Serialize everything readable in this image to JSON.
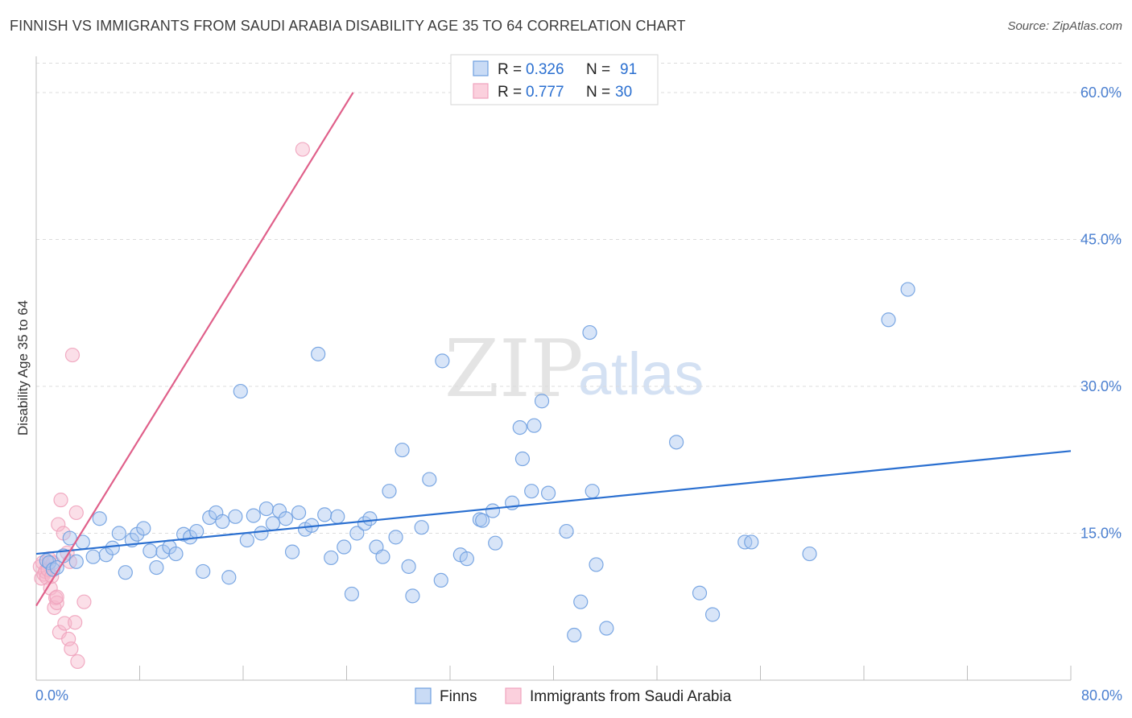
{
  "title": "FINNISH VS IMMIGRANTS FROM SAUDI ARABIA DISABILITY AGE 35 TO 64 CORRELATION CHART",
  "source": "Source: ZipAtlas.com",
  "watermark": {
    "zip": "ZIP",
    "atlas": "atlas"
  },
  "legend_box": {
    "rows": [
      {
        "r_label": "R = ",
        "r_value": "0.326",
        "n_label": "N = ",
        "n_value": "91"
      },
      {
        "r_label": "R = ",
        "r_value": "0.777",
        "n_label": "N = ",
        "n_value": "30"
      }
    ]
  },
  "bottom_legend": [
    "Finns",
    "Immigrants from Saudi Arabia"
  ],
  "colors": {
    "finns": "#6e9fe0",
    "finns_line": "#2a6fd0",
    "saudi": "#f0a3bd",
    "saudi_line": "#e0608a",
    "tick": "#4a7fd0"
  },
  "chart_data": {
    "type": "scatter",
    "xlabel": "",
    "ylabel": "Disability Age 35 to 64",
    "xlim": [
      0,
      80
    ],
    "ylim": [
      0,
      63
    ],
    "x_tick_labels": [
      "0.0%",
      "80.0%"
    ],
    "y_ticks": [
      15,
      30,
      45,
      60
    ],
    "y_tick_labels": [
      "15.0%",
      "30.0%",
      "45.0%",
      "60.0%"
    ],
    "grid": true,
    "series": [
      {
        "name": "Finns",
        "r": 0.326,
        "n": 91,
        "trend": {
          "x": [
            0,
            80
          ],
          "y": [
            12.9,
            23.4
          ]
        },
        "points": [
          [
            0.8,
            12.2
          ],
          [
            1.0,
            12.0
          ],
          [
            1.3,
            11.3
          ],
          [
            1.6,
            11.5
          ],
          [
            2.1,
            12.7
          ],
          [
            2.6,
            14.5
          ],
          [
            3.1,
            12.1
          ],
          [
            3.6,
            14.1
          ],
          [
            4.4,
            12.6
          ],
          [
            4.9,
            16.5
          ],
          [
            5.4,
            12.8
          ],
          [
            5.9,
            13.5
          ],
          [
            6.4,
            15.0
          ],
          [
            6.9,
            11.0
          ],
          [
            7.4,
            14.3
          ],
          [
            7.8,
            14.9
          ],
          [
            8.3,
            15.5
          ],
          [
            8.8,
            13.2
          ],
          [
            9.3,
            11.5
          ],
          [
            9.8,
            13.1
          ],
          [
            10.3,
            13.6
          ],
          [
            10.8,
            12.9
          ],
          [
            11.4,
            14.9
          ],
          [
            11.9,
            14.6
          ],
          [
            12.4,
            15.2
          ],
          [
            12.9,
            11.1
          ],
          [
            13.4,
            16.6
          ],
          [
            13.9,
            17.1
          ],
          [
            14.4,
            16.2
          ],
          [
            14.9,
            10.5
          ],
          [
            15.4,
            16.7
          ],
          [
            15.8,
            29.5
          ],
          [
            16.3,
            14.3
          ],
          [
            16.8,
            16.8
          ],
          [
            17.4,
            15.0
          ],
          [
            17.8,
            17.5
          ],
          [
            18.3,
            16.0
          ],
          [
            18.8,
            17.3
          ],
          [
            19.3,
            16.5
          ],
          [
            19.8,
            13.1
          ],
          [
            20.3,
            17.1
          ],
          [
            20.8,
            15.4
          ],
          [
            21.3,
            15.8
          ],
          [
            21.8,
            33.3
          ],
          [
            22.3,
            16.9
          ],
          [
            22.8,
            12.5
          ],
          [
            23.3,
            16.7
          ],
          [
            23.8,
            13.6
          ],
          [
            24.4,
            8.8
          ],
          [
            24.8,
            15.0
          ],
          [
            25.4,
            16.0
          ],
          [
            25.8,
            16.5
          ],
          [
            26.3,
            13.6
          ],
          [
            26.8,
            12.6
          ],
          [
            27.3,
            19.3
          ],
          [
            27.8,
            14.6
          ],
          [
            28.3,
            23.5
          ],
          [
            28.8,
            11.6
          ],
          [
            29.1,
            8.6
          ],
          [
            29.8,
            15.6
          ],
          [
            30.4,
            20.5
          ],
          [
            31.3,
            10.2
          ],
          [
            31.4,
            32.6
          ],
          [
            32.8,
            12.8
          ],
          [
            33.3,
            12.4
          ],
          [
            34.3,
            16.4
          ],
          [
            34.5,
            16.3
          ],
          [
            35.3,
            17.3
          ],
          [
            35.5,
            14.0
          ],
          [
            36.8,
            18.1
          ],
          [
            37.4,
            25.8
          ],
          [
            37.6,
            22.6
          ],
          [
            38.3,
            19.3
          ],
          [
            38.5,
            26.0
          ],
          [
            39.1,
            28.5
          ],
          [
            39.6,
            19.1
          ],
          [
            41.0,
            15.2
          ],
          [
            42.1,
            8.0
          ],
          [
            42.8,
            35.5
          ],
          [
            43.3,
            11.8
          ],
          [
            44.1,
            5.3
          ],
          [
            43.0,
            19.3
          ],
          [
            41.6,
            4.6
          ],
          [
            49.5,
            24.3
          ],
          [
            51.3,
            8.9
          ],
          [
            52.3,
            6.7
          ],
          [
            54.8,
            14.1
          ],
          [
            55.3,
            14.1
          ],
          [
            59.8,
            12.9
          ],
          [
            65.9,
            36.8
          ],
          [
            67.4,
            39.9
          ]
        ]
      },
      {
        "name": "Immigrants from Saudi Arabia",
        "r": 0.777,
        "n": 30,
        "trend": {
          "x": [
            0,
            24.5
          ],
          "y": [
            7.6,
            60.0
          ]
        },
        "points": [
          [
            0.3,
            11.6
          ],
          [
            0.4,
            10.4
          ],
          [
            0.5,
            12.0
          ],
          [
            0.6,
            10.8
          ],
          [
            0.7,
            11.1
          ],
          [
            0.8,
            10.5
          ],
          [
            0.9,
            11.3
          ],
          [
            1.0,
            12.4
          ],
          [
            1.1,
            9.4
          ],
          [
            1.2,
            10.6
          ],
          [
            1.3,
            12.0
          ],
          [
            1.4,
            7.4
          ],
          [
            1.5,
            8.4
          ],
          [
            1.6,
            7.9
          ],
          [
            1.7,
            15.9
          ],
          [
            1.8,
            4.9
          ],
          [
            1.9,
            18.4
          ],
          [
            2.1,
            15.0
          ],
          [
            2.2,
            5.8
          ],
          [
            2.4,
            13.0
          ],
          [
            2.5,
            4.2
          ],
          [
            2.6,
            12.1
          ],
          [
            2.7,
            3.2
          ],
          [
            2.8,
            33.2
          ],
          [
            3.0,
            5.9
          ],
          [
            3.1,
            17.1
          ],
          [
            3.2,
            1.9
          ],
          [
            3.7,
            8.0
          ],
          [
            20.6,
            54.2
          ],
          [
            1.6,
            8.5
          ]
        ]
      }
    ]
  }
}
